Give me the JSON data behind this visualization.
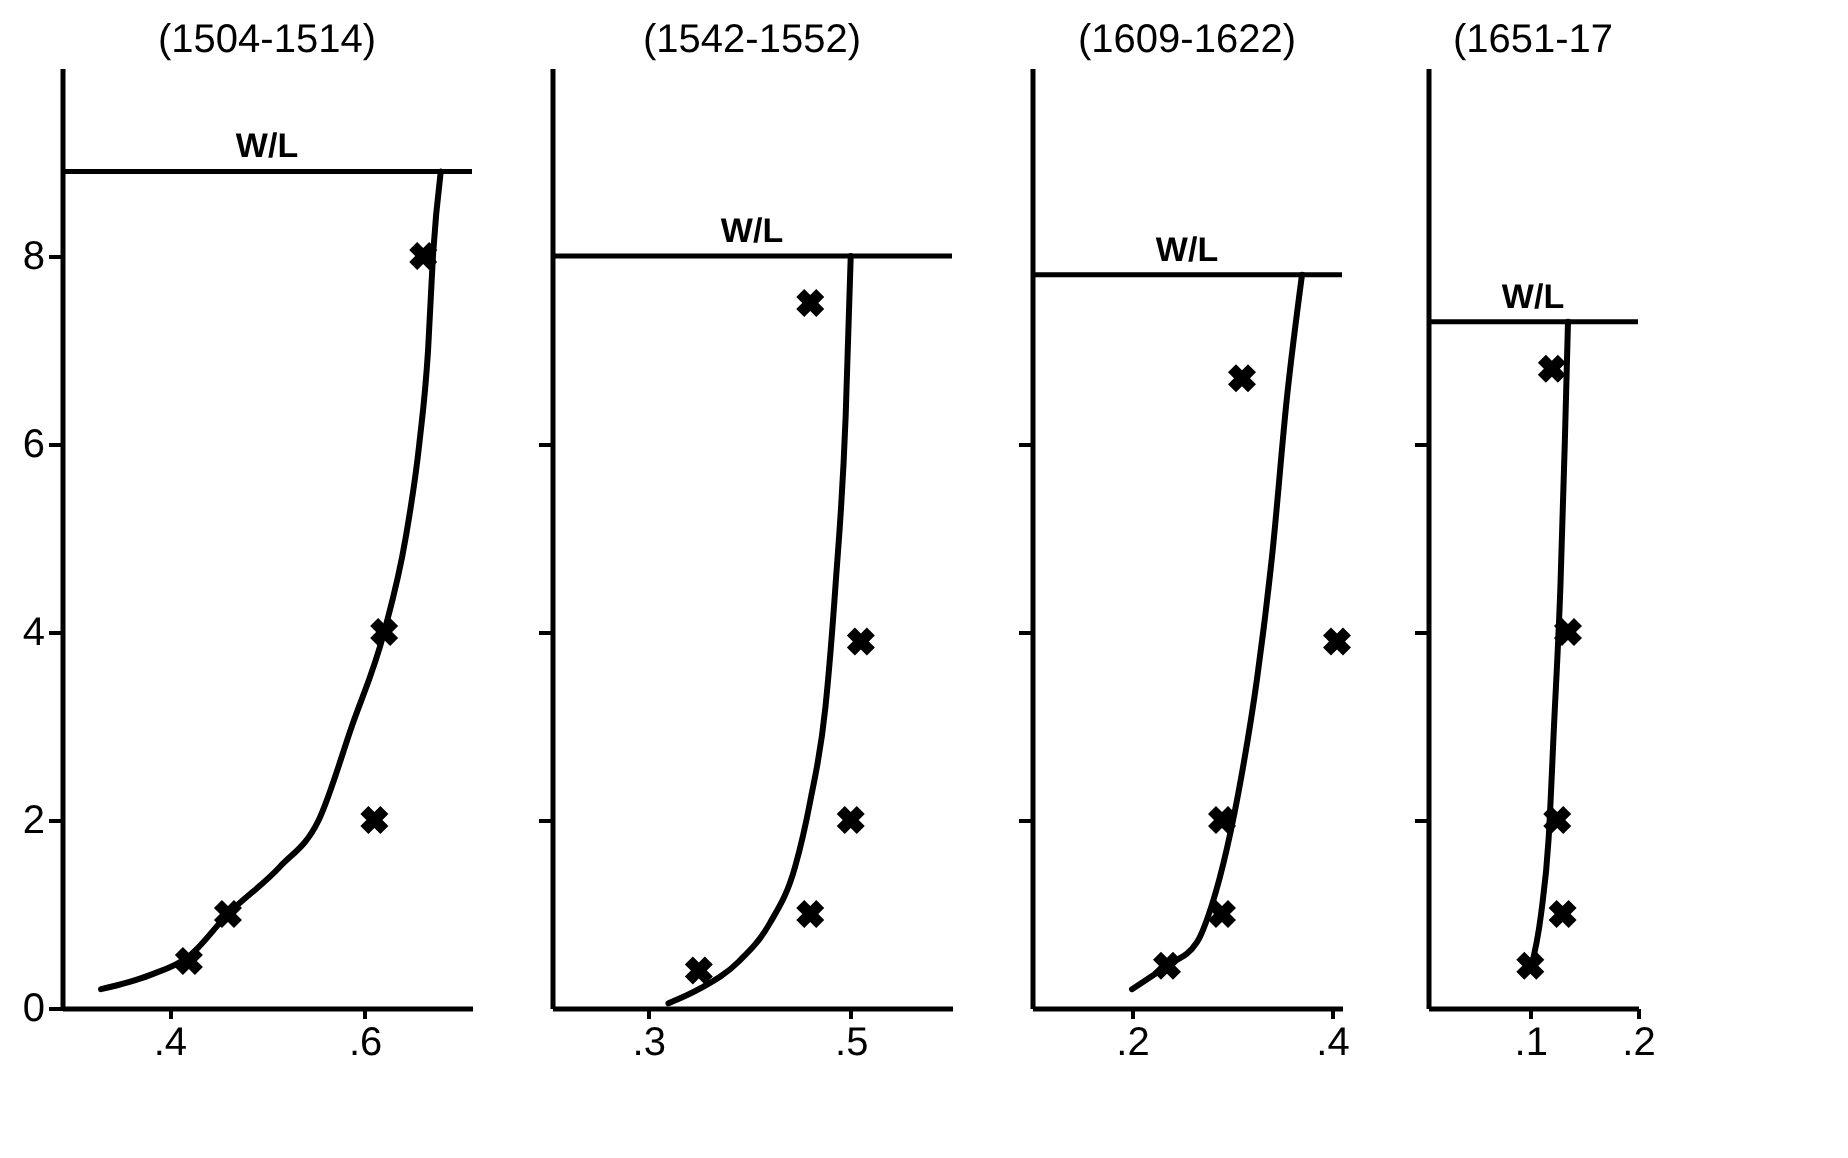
{
  "chart_data": [
    {
      "type": "scatter",
      "title": "(1504-1514)",
      "xlim": [
        0.29,
        0.71
      ],
      "ylim": [
        0,
        10
      ],
      "xticks": [
        {
          "value": 0.4,
          "label": ".4"
        },
        {
          "value": 0.6,
          "label": ".6"
        }
      ],
      "yticks": [
        0,
        2,
        4,
        6,
        8
      ],
      "grid": false,
      "series": [
        {
          "color": "#000000",
          "marker": "cross",
          "x": [
            0.42,
            0.46,
            0.61,
            0.62,
            0.66
          ],
          "values": [
            0.5,
            1,
            2,
            4,
            8
          ]
        },
        {
          "type": "line",
          "color": "#000000",
          "x": [
            0.33,
            0.38,
            0.42,
            0.46,
            0.513,
            0.553,
            0.587,
            0.62,
            0.642,
            0.656,
            0.665,
            0.67,
            0.678
          ],
          "values": [
            0.2,
            0.35,
            0.55,
            1,
            1.5,
            2,
            3,
            4,
            5,
            6,
            7,
            8,
            8.9
          ]
        }
      ],
      "ref_lines": [
        {
          "axis": "y",
          "value": 8.9,
          "label": "W/L"
        }
      ]
    },
    {
      "type": "scatter",
      "title": "(1542-1552)",
      "xlim": [
        0.205,
        0.6
      ],
      "ylim": [
        0,
        10
      ],
      "xticks": [
        {
          "value": 0.3,
          "label": ".3"
        },
        {
          "value": 0.5,
          "label": ".5"
        }
      ],
      "yticks": [
        {
          "value": 2,
          "label": null
        },
        {
          "value": 4,
          "label": null
        },
        {
          "value": 6,
          "label": null
        }
      ],
      "tick_labels": "x",
      "grid": false,
      "series": [
        {
          "color": "#000000",
          "marker": "cross",
          "x": [
            0.35,
            0.46,
            0.5,
            0.51,
            0.46
          ],
          "values": [
            0.4,
            1,
            2,
            3.9,
            7.5
          ]
        },
        {
          "type": "line",
          "color": "#000000",
          "x": [
            0.32,
            0.35,
            0.39,
            0.42,
            0.445,
            0.46,
            0.475,
            0.485,
            0.495,
            0.5
          ],
          "values": [
            0.05,
            0.2,
            0.5,
            0.9,
            1.5,
            2.2,
            3.2,
            4.5,
            6.3,
            8
          ]
        }
      ],
      "ref_lines": [
        {
          "axis": "y",
          "value": 8,
          "label": "W/L"
        }
      ]
    },
    {
      "type": "scatter",
      "title": "(1609-1622)",
      "xlim": [
        0.1,
        0.41
      ],
      "ylim": [
        0,
        10
      ],
      "xticks": [
        {
          "value": 0.2,
          "label": ".2"
        },
        {
          "value": 0.4,
          "label": ".4"
        }
      ],
      "yticks": [
        {
          "value": 2,
          "label": null
        },
        {
          "value": 4,
          "label": null
        },
        {
          "value": 6,
          "label": null
        }
      ],
      "tick_labels": "x",
      "grid": false,
      "series": [
        {
          "color": "#000000",
          "marker": "cross",
          "x": [
            0.235,
            0.29,
            0.29,
            0.31,
            0.405
          ],
          "values": [
            0.45,
            1,
            2,
            6.7,
            3.9
          ]
        },
        {
          "type": "line",
          "color": "#000000",
          "x": [
            0.2,
            0.235,
            0.265,
            0.28,
            0.295,
            0.31,
            0.325,
            0.34,
            0.355,
            0.37
          ],
          "values": [
            0.2,
            0.45,
            0.7,
            1.1,
            1.7,
            2.5,
            3.5,
            4.8,
            6.5,
            7.8
          ]
        }
      ],
      "ref_lines": [
        {
          "axis": "y",
          "value": 7.8,
          "label": "W/L"
        }
      ]
    },
    {
      "type": "scatter",
      "title": "(1651-17",
      "xlim": [
        0.005,
        0.2
      ],
      "ylim": [
        0,
        10
      ],
      "xticks": [
        {
          "value": 0.1,
          "label": ".1"
        },
        {
          "value": 0.2,
          "label": ".2"
        }
      ],
      "yticks": [
        {
          "value": 2,
          "label": null
        },
        {
          "value": 4,
          "label": null
        },
        {
          "value": 6,
          "label": null
        }
      ],
      "tick_labels": "x",
      "grid": false,
      "series": [
        {
          "color": "#000000",
          "marker": "cross",
          "x": [
            0.1,
            0.13,
            0.125,
            0.135,
            0.12
          ],
          "values": [
            0.45,
            1,
            2,
            4,
            6.8
          ]
        },
        {
          "type": "line",
          "color": "#000000",
          "x": [
            0.1,
            0.11,
            0.117,
            0.122,
            0.128,
            0.132,
            0.135
          ],
          "values": [
            0.4,
            1,
            1.8,
            3,
            4.5,
            6,
            7.3
          ]
        }
      ],
      "ref_lines": [
        {
          "axis": "y",
          "value": 7.3,
          "label": "W/L"
        }
      ]
    }
  ]
}
